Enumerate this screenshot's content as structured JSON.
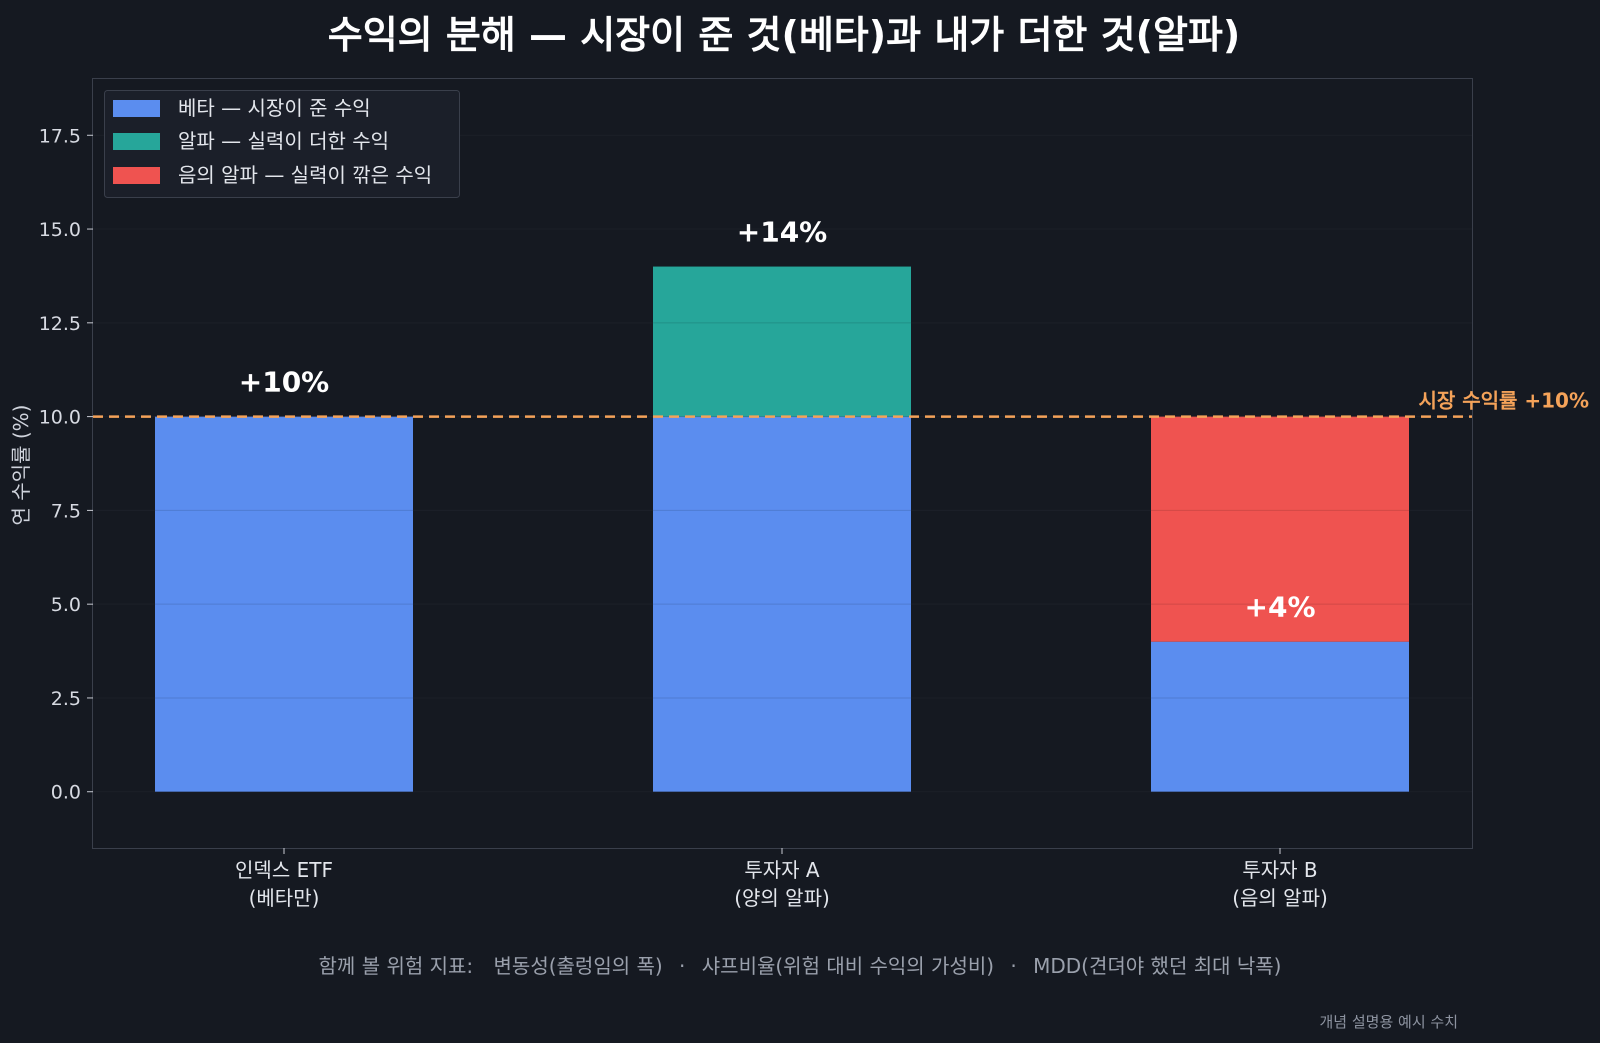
{
  "colors": {
    "background": "#151921",
    "beta": "#5b8def",
    "alpha": "#26a69a",
    "negative_alpha": "#ef5350",
    "market_line": "#f4a259",
    "grid": "#2a2f3a",
    "frame": "#3a3f4b"
  },
  "chart_data": {
    "type": "bar",
    "stacked": true,
    "title": "수익의 분해 — 시장이 준 것(베타)과 내가 더한 것(알파)",
    "ylabel": "연 수익률 (%)",
    "xlabel": "",
    "ylim": [
      -1.5,
      19
    ],
    "yticks": [
      "0.0",
      "2.5",
      "5.0",
      "7.5",
      "10.0",
      "12.5",
      "15.0",
      "17.5"
    ],
    "grid": true,
    "legend_position": "top-left",
    "categories": [
      {
        "line1": "인덱스 ETF",
        "line2": "(베타만)"
      },
      {
        "line1": "투자자 A",
        "line2": "(양의 알파)"
      },
      {
        "line1": "투자자 B",
        "line2": "(음의 알파)"
      }
    ],
    "series": [
      {
        "name": "베타 — 시장이 준 수익",
        "key": "beta",
        "values": [
          10,
          10,
          4
        ]
      },
      {
        "name": "알파 — 실력이 더한 수익",
        "key": "alpha",
        "values": [
          0,
          4,
          0
        ]
      },
      {
        "name": "음의 알파 — 실력이 깎은 수익",
        "key": "negative_alpha",
        "values": [
          0,
          0,
          6
        ]
      }
    ],
    "totals": [
      {
        "label": "+10%",
        "y": 10
      },
      {
        "label": "+14%",
        "y": 14
      },
      {
        "label": "+4%",
        "y": 4
      }
    ],
    "reference_line": {
      "y": 10,
      "label": "시장 수익률 +10%",
      "style": "dashed"
    }
  },
  "footnote": {
    "prefix": "함께 볼 위험 지표:",
    "items": [
      "변동성(출렁임의 폭)",
      "샤프비율(위험 대비 수익의 가성비)",
      "MDD(견뎌야 했던 최대 낙폭)"
    ],
    "separator": "·"
  },
  "source_note": "개념 설명용 예시 수치"
}
